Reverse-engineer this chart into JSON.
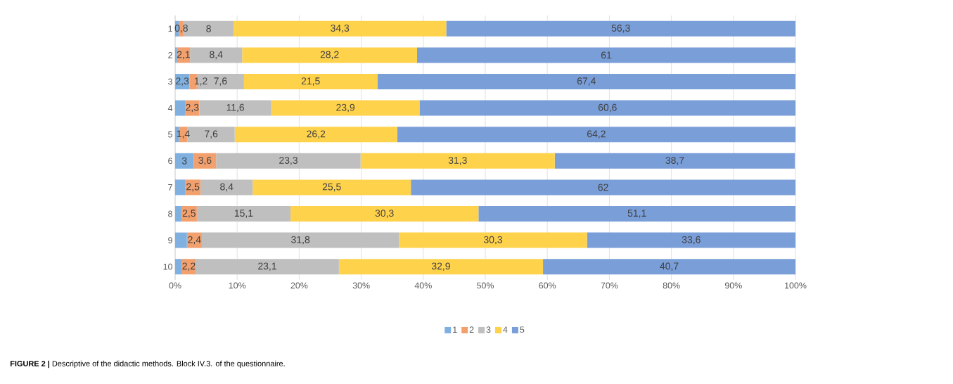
{
  "chart_data": {
    "type": "bar",
    "orientation": "horizontal",
    "stacked": true,
    "categories": [
      "1",
      "2",
      "3",
      "4",
      "5",
      "6",
      "7",
      "8",
      "9",
      "10"
    ],
    "series": [
      {
        "name": "1",
        "color": "#7fb0e0",
        "values": [
          0.6,
          0.3,
          2.3,
          1.6,
          0.6,
          3,
          1.6,
          1.0,
          1.9,
          1.1
        ],
        "value_labels": [
          null,
          null,
          "2,3",
          null,
          null,
          "3",
          null,
          null,
          null,
          null
        ]
      },
      {
        "name": "2",
        "color": "#f2a06e",
        "values": [
          0.8,
          2.1,
          1.2,
          2.3,
          1.4,
          3.6,
          2.5,
          2.5,
          2.4,
          2.2
        ],
        "value_labels": [
          "0,8",
          "2,1",
          "1,2",
          "2,3",
          "1,4",
          "3,6",
          "2,5",
          "2,5",
          "2,4",
          "2,2"
        ]
      },
      {
        "name": "3",
        "color": "#bfbfbf",
        "values": [
          8,
          8.4,
          7.6,
          11.6,
          7.6,
          23.3,
          8.4,
          15.1,
          31.8,
          23.1
        ],
        "value_labels": [
          "8",
          "8,4",
          "7,6",
          "11,6",
          "7,6",
          "23,3",
          "8,4",
          "15,1",
          "31,8",
          "23,1"
        ]
      },
      {
        "name": "4",
        "color": "#ffd24c",
        "values": [
          34.3,
          28.2,
          21.5,
          23.9,
          26.2,
          31.3,
          25.5,
          30.3,
          30.3,
          32.9
        ],
        "value_labels": [
          "34,3",
          "28,2",
          "21,5",
          "23,9",
          "26,2",
          "31,3",
          "25,5",
          "30,3",
          "30,3",
          "32,9"
        ]
      },
      {
        "name": "5",
        "color": "#7a9ed8",
        "values": [
          56.3,
          61,
          67.4,
          60.6,
          64.2,
          38.7,
          62,
          51.1,
          33.6,
          40.7
        ],
        "value_labels": [
          "56,3",
          "61",
          "67,4",
          "60,6",
          "64,2",
          "38,7",
          "62",
          "51,1",
          "33,6",
          "40,7"
        ]
      }
    ],
    "xlim": [
      0,
      100
    ],
    "xticks": [
      {
        "value": 0,
        "label": "0%"
      },
      {
        "value": 10,
        "label": "10%"
      },
      {
        "value": 20,
        "label": "20%"
      },
      {
        "value": 30,
        "label": "30%"
      },
      {
        "value": 40,
        "label": "40%"
      },
      {
        "value": 50,
        "label": "50%"
      },
      {
        "value": 60,
        "label": "60%"
      },
      {
        "value": 70,
        "label": "70%"
      },
      {
        "value": 80,
        "label": "80%"
      },
      {
        "value": 90,
        "label": "90%"
      },
      {
        "value": 100,
        "label": "100%"
      }
    ],
    "grid": "x",
    "legend": "bottom",
    "annotations": [
      "**FIGURE 2 |** Descriptive of the didactic methods. Block IV.3. of the questionnaire."
    ]
  }
}
